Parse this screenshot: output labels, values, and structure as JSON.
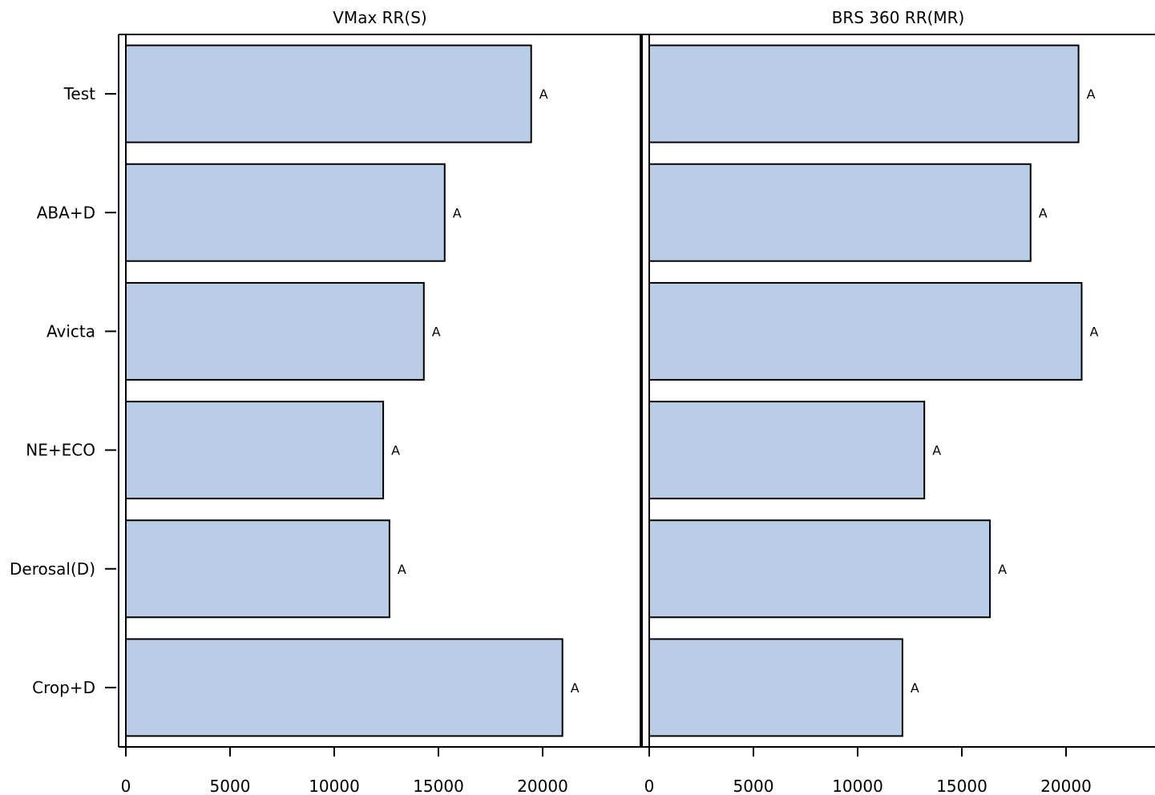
{
  "chart_data": {
    "type": "bar",
    "orientation": "horizontal",
    "categories": [
      "Test",
      "ABA+D",
      "Avicta",
      "NE+ECO",
      "Derosal(D)",
      "Crop+D"
    ],
    "panels": [
      {
        "title": "VMax RR(S)",
        "values": [
          19450,
          15300,
          14300,
          12350,
          12650,
          20950
        ],
        "labels": [
          "A",
          "A",
          "A",
          "A",
          "A",
          "A"
        ]
      },
      {
        "title": "BRS 360 RR(MR)",
        "values": [
          20600,
          18300,
          20750,
          13200,
          16350,
          12150
        ],
        "labels": [
          "A",
          "A",
          "A",
          "A",
          "A",
          "A"
        ]
      }
    ],
    "xticks": [
      0,
      5000,
      10000,
      15000,
      20000
    ],
    "xlim": [
      0,
      24000
    ],
    "bar_fill": "#b9cee6",
    "bar_stroke": "#000000",
    "grid": false,
    "legend": "none"
  }
}
